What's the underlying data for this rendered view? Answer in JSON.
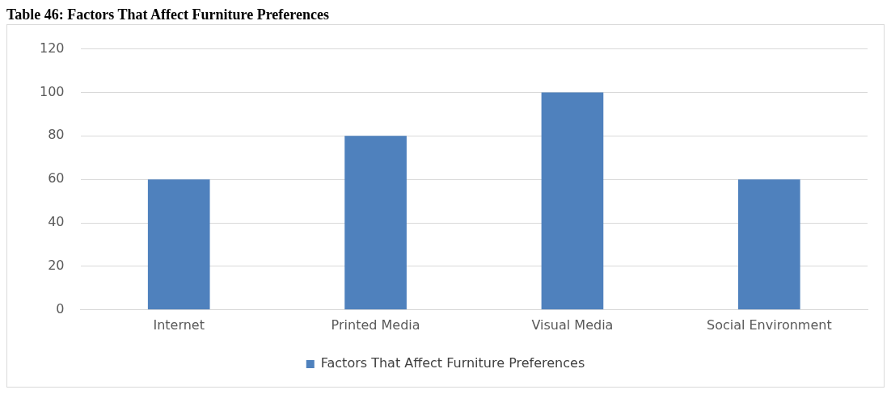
{
  "chart_data": {
    "type": "bar",
    "title": "Table 46: Factors That Affect Furniture Preferences",
    "categories": [
      "Internet",
      "Printed Media",
      "Visual Media",
      "Social Environment"
    ],
    "series": [
      {
        "name": "Factors That Affect Furniture Preferences",
        "color": "#4f81bd",
        "values": [
          60,
          80,
          100,
          60
        ]
      }
    ],
    "ylim": [
      0,
      120
    ],
    "yticks": [
      0,
      20,
      40,
      60,
      80,
      100,
      120
    ],
    "grid": "y",
    "legend": "bottom"
  }
}
